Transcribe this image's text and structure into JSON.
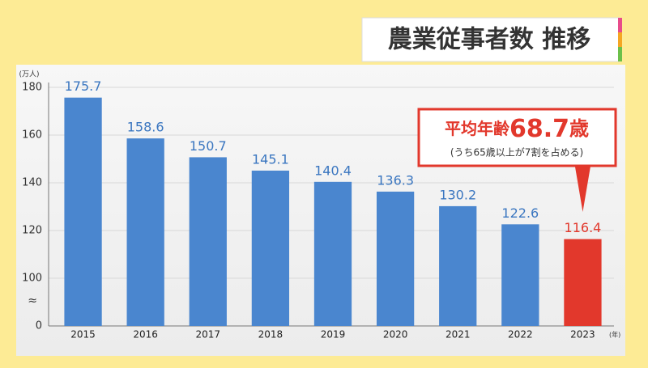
{
  "chart_data": {
    "type": "bar",
    "title": "農業従事者数 推移",
    "y_unit": "(万人)",
    "x_unit": "(年)",
    "categories": [
      "2015",
      "2016",
      "2017",
      "2018",
      "2019",
      "2020",
      "2021",
      "2022",
      "2023"
    ],
    "series": [
      {
        "values": [
          175.7,
          158.6,
          150.7,
          145.1,
          140.4,
          136.3,
          130.2,
          122.6,
          116.4
        ],
        "colors": [
          "#4a86cf",
          "#4a86cf",
          "#4a86cf",
          "#4a86cf",
          "#4a86cf",
          "#4a86cf",
          "#4a86cf",
          "#4a86cf",
          "#e2382c"
        ],
        "label_colors": [
          "#3a76c0",
          "#3a76c0",
          "#3a76c0",
          "#3a76c0",
          "#3a76c0",
          "#3a76c0",
          "#3a76c0",
          "#3a76c0",
          "#e2382c"
        ]
      }
    ],
    "ylim": [
      80,
      180
    ],
    "yticks": [
      100,
      120,
      140,
      160,
      180
    ],
    "grid": true,
    "y_origin_label": "0",
    "axis_break_mark": "≈",
    "callout": {
      "prefix": "平均年齢",
      "value": "68.7",
      "suffix": "歳",
      "note": "(うち65歳以上が7割を占める)",
      "category_index": 8,
      "color": "#e2382c"
    }
  }
}
